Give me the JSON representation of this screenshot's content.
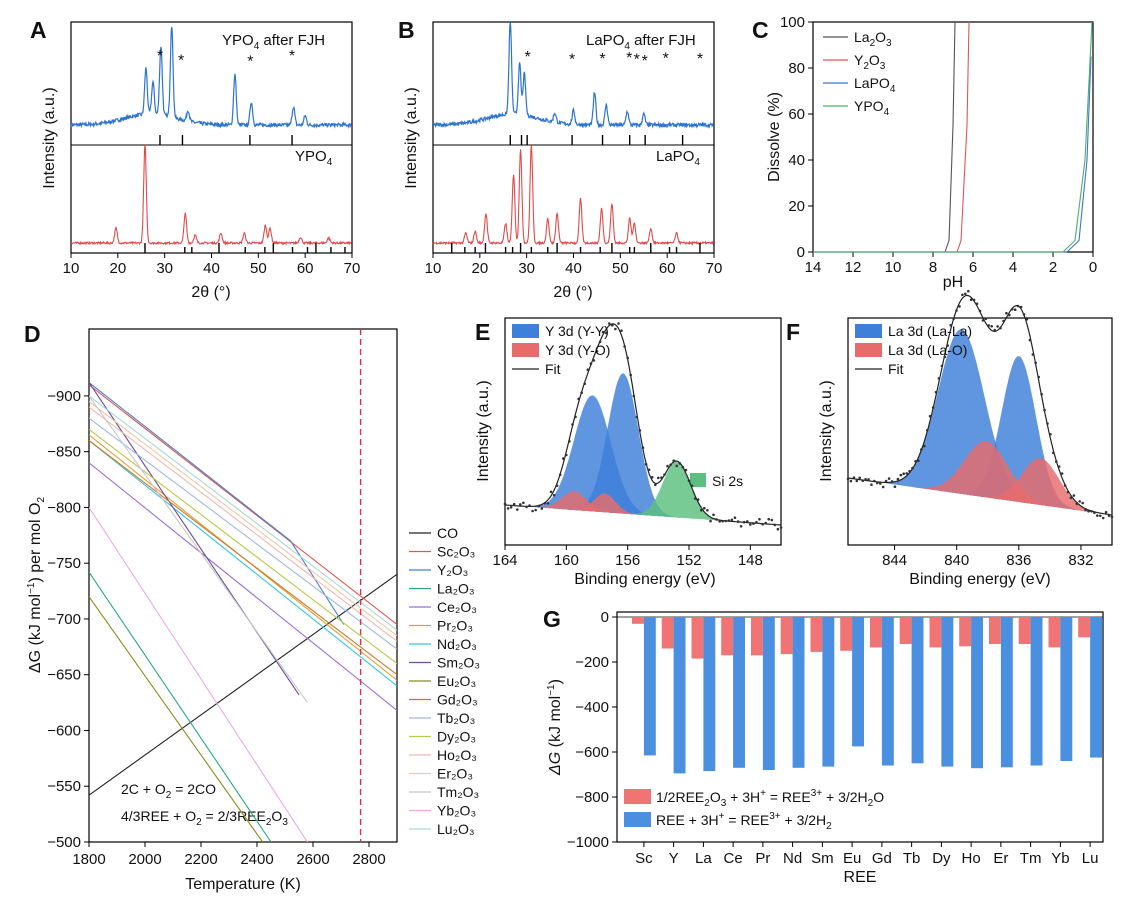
{
  "chart_data": [
    {
      "id": "A",
      "type": "line",
      "title_top": "YPO4 after FJH",
      "title_bottom": "YPO4",
      "xlabel": "2θ (°)",
      "ylabel": "Intensity (a.u.)",
      "xlim": [
        10,
        70
      ],
      "xticks": [
        10,
        20,
        30,
        40,
        50,
        60,
        70
      ],
      "star_label": "*",
      "top_series": {
        "color": "#2c73d2",
        "peaks": [
          [
            26,
            0.5
          ],
          [
            27.5,
            0.35
          ],
          [
            29.2,
            0.75
          ],
          [
            31.5,
            1.0
          ],
          [
            35,
            0.12
          ],
          [
            45,
            0.55
          ],
          [
            48.5,
            0.25
          ],
          [
            57.5,
            0.2
          ],
          [
            60,
            0.1
          ]
        ],
        "stars_at": [
          29,
          33.5,
          48.3,
          57.2
        ]
      },
      "bottom_series": {
        "color": "#e04a4a",
        "peaks": [
          [
            19.6,
            0.15
          ],
          [
            25.8,
            1.0
          ],
          [
            34.4,
            0.3
          ],
          [
            36.5,
            0.08
          ],
          [
            42,
            0.1
          ],
          [
            47,
            0.1
          ],
          [
            51.5,
            0.18
          ],
          [
            52.5,
            0.15
          ],
          [
            59,
            0.06
          ],
          [
            65,
            0.05
          ]
        ]
      },
      "ref_ticks_top": [
        29,
        33.8,
        48.2,
        57.2
      ],
      "ref_ticks_bottom": [
        25.8,
        34.3,
        35.8,
        41.6,
        47.2,
        51.4,
        53.2,
        57.3,
        60.5,
        62.3,
        65.5,
        68.5
      ]
    },
    {
      "id": "B",
      "type": "line",
      "title_top": "LaPO4 after FJH",
      "title_bottom": "LaPO4",
      "xlabel": "2θ (°)",
      "ylabel": "Intensity (a.u.)",
      "xlim": [
        10,
        70
      ],
      "xticks": [
        10,
        20,
        30,
        40,
        50,
        60,
        70
      ],
      "star_label": "*",
      "top_series": {
        "color": "#2c73d2",
        "peaks": [
          [
            26.5,
            1.0
          ],
          [
            28.5,
            0.55
          ],
          [
            29.5,
            0.45
          ],
          [
            36,
            0.1
          ],
          [
            40,
            0.15
          ],
          [
            44.5,
            0.35
          ],
          [
            47,
            0.22
          ],
          [
            51.5,
            0.15
          ],
          [
            55,
            0.12
          ]
        ],
        "stars_at": [
          30.2,
          39.7,
          46.2,
          51.9,
          53.5,
          55.2,
          59.7,
          67
        ]
      },
      "bottom_series": {
        "color": "#e04a4a",
        "peaks": [
          [
            17,
            0.1
          ],
          [
            19,
            0.12
          ],
          [
            21.3,
            0.3
          ],
          [
            25.5,
            0.2
          ],
          [
            27.2,
            0.7
          ],
          [
            28.7,
            0.95
          ],
          [
            31,
            1.0
          ],
          [
            34.5,
            0.25
          ],
          [
            36.5,
            0.3
          ],
          [
            41.5,
            0.45
          ],
          [
            46,
            0.35
          ],
          [
            48.2,
            0.4
          ],
          [
            52,
            0.25
          ],
          [
            53,
            0.2
          ],
          [
            56.5,
            0.15
          ],
          [
            62,
            0.1
          ]
        ]
      },
      "ref_ticks_top": [
        26.5,
        28.9,
        30.1,
        39.7,
        46.2,
        52,
        55.3,
        63.3
      ],
      "ref_ticks_bottom": [
        14,
        16.8,
        19,
        21.2,
        25.5,
        27,
        28.7,
        31,
        34.5,
        36.5,
        41.5,
        45.7,
        48.2,
        52,
        53,
        56.5,
        60.5,
        62,
        67
      ]
    },
    {
      "id": "C",
      "type": "line",
      "xlabel": "pH",
      "ylabel": "Dissolve (%)",
      "xlim": [
        14,
        0
      ],
      "ylim": [
        0,
        100
      ],
      "xticks": [
        14,
        12,
        10,
        8,
        6,
        4,
        2,
        0
      ],
      "yticks": [
        0,
        20,
        40,
        60,
        80,
        100
      ],
      "series": [
        {
          "name": "La2O3",
          "label": "La",
          "sub1": "2",
          "mid": "O",
          "sub2": "3",
          "color": "#555555",
          "x": [
            7.4,
            7.2,
            7.0,
            6.9
          ],
          "y": [
            0,
            5,
            55,
            100
          ]
        },
        {
          "name": "Y2O3",
          "label": "Y",
          "sub1": "2",
          "mid": "O",
          "sub2": "3",
          "color": "#e05555",
          "x": [
            6.8,
            6.6,
            6.3,
            6.2
          ],
          "y": [
            0,
            5,
            55,
            100
          ]
        },
        {
          "name": "LaPO4",
          "label": "LaPO",
          "sub1": "4",
          "mid": "",
          "sub2": "",
          "color": "#3a78c9",
          "x": [
            1.3,
            0.7,
            0.3,
            0.1
          ],
          "y": [
            0,
            5,
            40,
            85
          ]
        },
        {
          "name": "YPO4",
          "label": "YPO",
          "sub1": "4",
          "mid": "",
          "sub2": "",
          "color": "#4caf6e",
          "x": [
            1.5,
            0.9,
            0.4,
            0.05
          ],
          "y": [
            0,
            5,
            40,
            100
          ]
        }
      ]
    },
    {
      "id": "D",
      "type": "line",
      "xlabel": "Temperature (K)",
      "ylabel": "ΔG (kJ mol⁻¹) per mol O₂",
      "xlim": [
        1800,
        2900
      ],
      "ylim": [
        -960,
        -500
      ],
      "xticks": [
        1800,
        2000,
        2200,
        2400,
        2600,
        2800
      ],
      "yticks": [
        -500,
        -550,
        -600,
        -650,
        -700,
        -750,
        -800,
        -850,
        -900
      ],
      "vline": 2770,
      "annotation_1": "2C + O₂ = 2CO",
      "annotation_2": "4/3REE + O₂ = 2/3REE₂O₃",
      "series": [
        {
          "name": "CO",
          "color": "#222222",
          "x": [
            1800,
            2900
          ],
          "y": [
            -542,
            -740
          ]
        },
        {
          "name": "Sc₂O₃",
          "color": "#e0584c",
          "x": [
            1800,
            2900
          ],
          "y": [
            -910,
            -695
          ]
        },
        {
          "name": "Y₂O₃",
          "color": "#4a7fd4",
          "x": [
            1800,
            2520,
            2710
          ],
          "y": [
            -912,
            -770,
            -695
          ]
        },
        {
          "name": "La₂O₃",
          "color": "#2aa87e",
          "x": [
            1800,
            2450
          ],
          "y": [
            -742,
            -500
          ]
        },
        {
          "name": "Ce₂O₃",
          "color": "#9b6fd6",
          "x": [
            1800,
            2900
          ],
          "y": [
            -840,
            -618
          ]
        },
        {
          "name": "Pr₂O₃",
          "color": "#e0a030",
          "x": [
            1800,
            2900
          ],
          "y": [
            -865,
            -645
          ]
        },
        {
          "name": "Nd₂O₃",
          "color": "#33c6df",
          "x": [
            1800,
            2900
          ],
          "y": [
            -860,
            -640
          ]
        },
        {
          "name": "Sm₂O₃",
          "color": "#6b4c9a",
          "x": [
            1800,
            2550
          ],
          "y": [
            -912,
            -632
          ]
        },
        {
          "name": "Eu₂O₃",
          "color": "#8c8c1c",
          "x": [
            1800,
            2420
          ],
          "y": [
            -720,
            -500
          ]
        },
        {
          "name": "Gd₂O₃",
          "color": "#c87a2c",
          "x": [
            1800,
            2900
          ],
          "y": [
            -860,
            -650
          ]
        },
        {
          "name": "Tb₂O₃",
          "color": "#9db8e8",
          "x": [
            1800,
            2900
          ],
          "y": [
            -880,
            -673
          ]
        },
        {
          "name": "Dy₂O₃",
          "color": "#b7c94a",
          "x": [
            1800,
            2900
          ],
          "y": [
            -870,
            -660
          ]
        },
        {
          "name": "Ho₂O₃",
          "color": "#f0b8b0",
          "x": [
            1800,
            2900
          ],
          "y": [
            -890,
            -680
          ]
        },
        {
          "name": "Er₂O₃",
          "color": "#f3c8a0",
          "x": [
            1800,
            2900
          ],
          "y": [
            -895,
            -685
          ]
        },
        {
          "name": "Tm₂O₃",
          "color": "#c8c8c8",
          "x": [
            1800,
            2580
          ],
          "y": [
            -900,
            -625
          ]
        },
        {
          "name": "Yb₂O₃",
          "color": "#f0a8e0",
          "x": [
            1800,
            2580
          ],
          "y": [
            -800,
            -500
          ]
        },
        {
          "name": "Lu₂O₃",
          "color": "#a8d8d8",
          "x": [
            1800,
            2900
          ],
          "y": [
            -900,
            -690
          ]
        }
      ]
    },
    {
      "id": "E",
      "type": "area",
      "xlabel": "Binding energy (eV)",
      "ylabel": "Intensity (a.u.)",
      "xlim": [
        164,
        146
      ],
      "xticks": [
        164,
        160,
        156,
        152,
        148
      ],
      "legend": [
        {
          "label": "Y 3d (Y-Y)",
          "color": "#3d7fd9",
          "kind": "box"
        },
        {
          "label": "Y 3d (Y-O)",
          "color": "#e86b6b",
          "kind": "box"
        },
        {
          "label": "Fit",
          "color": "#222222",
          "kind": "line"
        }
      ],
      "extra_label": "Si 2s",
      "extra_color": "#5cbf7e",
      "peaks": [
        {
          "center": 158.3,
          "height": 0.62,
          "width": 1.2,
          "color": "#3d7fd9"
        },
        {
          "center": 156.3,
          "height": 0.75,
          "width": 1.0,
          "color": "#3d7fd9"
        },
        {
          "center": 159.5,
          "height": 0.1,
          "width": 0.8,
          "color": "#e86b6b"
        },
        {
          "center": 157.5,
          "height": 0.1,
          "width": 0.7,
          "color": "#e86b6b"
        },
        {
          "center": 152.8,
          "height": 0.3,
          "width": 0.9,
          "color": "#5cbf7e"
        }
      ]
    },
    {
      "id": "F",
      "type": "area",
      "xlabel": "Binding energy (eV)",
      "ylabel": "Intensity (a.u.)",
      "xlim": [
        847,
        830
      ],
      "xticks": [
        844,
        840,
        836,
        832
      ],
      "legend": [
        {
          "label": "La 3d (La-La)",
          "color": "#3d7fd9",
          "kind": "box"
        },
        {
          "label": "La 3d (La-O)",
          "color": "#e86b6b",
          "kind": "box"
        },
        {
          "label": "Fit",
          "color": "#222222",
          "kind": "line"
        }
      ],
      "peaks": [
        {
          "center": 839.7,
          "height": 0.88,
          "width": 1.5,
          "color": "#3d7fd9"
        },
        {
          "center": 836.0,
          "height": 0.78,
          "width": 1.1,
          "color": "#3d7fd9"
        },
        {
          "center": 838.1,
          "height": 0.3,
          "width": 1.4,
          "color": "#e86b6b"
        },
        {
          "center": 834.6,
          "height": 0.25,
          "width": 1.2,
          "color": "#e86b6b"
        }
      ]
    },
    {
      "id": "G",
      "type": "bar",
      "xlabel": "REE",
      "ylabel": "ΔG (kJ mol⁻¹)",
      "ylim": [
        -1000,
        0
      ],
      "yticks": [
        0,
        -200,
        -400,
        -600,
        -800,
        -1000
      ],
      "categories": [
        "Sc",
        "Y",
        "La",
        "Ce",
        "Pr",
        "Nd",
        "Sm",
        "Eu",
        "Gd",
        "Tb",
        "Dy",
        "Ho",
        "Er",
        "Tm",
        "Yb",
        "Lu"
      ],
      "series": [
        {
          "name": "1/2REE2O3 + 3H+ = REE3+ + 3/2H2O",
          "color": "#f07474",
          "values": [
            -30,
            -140,
            -185,
            -170,
            -170,
            -165,
            -155,
            -150,
            -135,
            -120,
            -135,
            -130,
            -120,
            -120,
            -135,
            -90
          ]
        },
        {
          "name": "REE + 3H+ = REE3+ + 3/2H2",
          "color": "#4a8fe0",
          "values": [
            -615,
            -695,
            -685,
            -670,
            -680,
            -670,
            -665,
            -575,
            -660,
            -650,
            -665,
            -672,
            -668,
            -660,
            -640,
            -625
          ]
        }
      ]
    }
  ],
  "labels": {
    "panel_A": "A",
    "panel_B": "B",
    "panel_C": "C",
    "panel_D": "D",
    "panel_E": "E",
    "panel_F": "F",
    "panel_G": "G",
    "a_top_main": "YPO",
    "a_top_sub": "4",
    "a_top_rest": " after FJH",
    "a_bot_main": "YPO",
    "a_bot_sub": "4",
    "b_top_main": "LaPO",
    "b_top_sub": "4",
    "b_top_rest": " after FJH",
    "b_bot_main": "LaPO",
    "b_bot_sub": "4",
    "d_eq1_a": "2C + O",
    "d_eq1_s": "2",
    "d_eq1_b": " = 2CO",
    "d_eq2_a": "4/3REE + O",
    "d_eq2_s": "2",
    "d_eq2_b": " = 2/3REE",
    "d_eq2_s2": "2",
    "d_eq2_c": "O",
    "d_eq2_s3": "3",
    "g_leg1_a": "1/2REE",
    "g_leg1_s1": "2",
    "g_leg1_b": "O",
    "g_leg1_s2": "3",
    "g_leg1_c": " + 3H",
    "g_leg1_p": "+",
    "g_leg1_d": " = REE",
    "g_leg1_p2": "3+",
    "g_leg1_e": " + 3/2H",
    "g_leg1_s3": "2",
    "g_leg1_f": "O",
    "g_leg2_a": "REE + 3H",
    "g_leg2_p": "+",
    "g_leg2_b": " = REE",
    "g_leg2_p2": "3+",
    "g_leg2_c": " + 3/2H",
    "g_leg2_s": "2",
    "g_ylab_a": "ΔG",
    "g_ylab_b": " (kJ mol",
    "g_ylab_p": "−1",
    "g_ylab_c": ")",
    "d_ylab_a": "ΔG (kJ mol",
    "d_ylab_p": "−1",
    "d_ylab_b": ") per mol O",
    "d_ylab_s": "2"
  }
}
